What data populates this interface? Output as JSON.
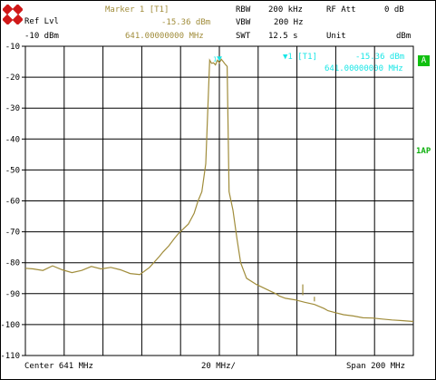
{
  "header": {
    "ref_lvl_label": "Ref Lvl",
    "ref_lvl_value": "-10 dBm",
    "marker_title": "Marker 1 [T1]",
    "marker_level": "-15.36 dBm",
    "marker_freq": "641.00000000 MHz",
    "rbw_label": "RBW",
    "rbw_value": "200 kHz",
    "vbw_label": "VBW",
    "vbw_value": "200 Hz",
    "swt_label": "SWT",
    "swt_value": "12.5 s",
    "rfatt_label": "RF Att",
    "rfatt_value": "0 dB",
    "unit_label": "Unit",
    "unit_value": "dBm"
  },
  "marker_box": {
    "title": "▼1 [T1]",
    "level": "-15.36 dBm",
    "freq": "641.00000000 MHz"
  },
  "side": {
    "trace_badge": "A",
    "ap_label": "1AP"
  },
  "footer": {
    "center": "Center 641 MHz",
    "div": "20 MHz/",
    "span": "Span 200 MHz"
  },
  "colors": {
    "trace": "#a08c3a",
    "marker": "#19e6e6",
    "grid": "#000000",
    "badge": "#10c010"
  },
  "chart_data": {
    "type": "line",
    "title": "",
    "xlabel": "",
    "ylabel": "",
    "x_unit": "MHz",
    "y_unit": "dBm",
    "xlim": [
      541,
      741
    ],
    "ylim": [
      -110,
      -10
    ],
    "y_ticks": [
      -10,
      -20,
      -30,
      -40,
      -50,
      -60,
      -70,
      -80,
      -90,
      -100,
      -110
    ],
    "grid": true,
    "series": [
      {
        "name": "",
        "x": [
          541,
          545,
          550,
          555,
          560,
          565,
          570,
          575,
          580,
          585,
          590,
          595,
          600,
          605,
          610,
          612,
          615,
          618,
          620,
          625,
          628,
          630,
          632,
          634,
          636,
          637,
          638,
          639,
          640,
          641,
          642,
          643,
          644,
          645,
          646,
          648,
          650,
          652,
          655,
          660,
          665,
          670,
          672,
          675,
          680,
          685,
          690,
          695,
          697,
          700,
          705,
          710,
          715,
          720,
          725,
          730,
          735,
          741
        ],
        "y": [
          -81.8,
          -82.0,
          -82.5,
          -81.0,
          -82.3,
          -83.2,
          -82.5,
          -81.2,
          -82.0,
          -81.5,
          -82.3,
          -83.5,
          -83.8,
          -81.5,
          -78.0,
          -76.5,
          -74.5,
          -72.0,
          -70.5,
          -67.5,
          -64.0,
          -60.0,
          -57.0,
          -48.0,
          -14.5,
          -15.5,
          -15.36,
          -16.0,
          -14.5,
          -15.36,
          -14.2,
          -15.0,
          -15.8,
          -16.5,
          -57.0,
          -63.0,
          -72.0,
          -80.0,
          -85.0,
          -87.0,
          -88.5,
          -90.0,
          -90.8,
          -91.5,
          -92.0,
          -92.8,
          -93.5,
          -94.8,
          -95.5,
          -96.0,
          -96.8,
          -97.2,
          -97.8,
          -97.9,
          -98.2,
          -98.5,
          -98.7,
          -99.0
        ]
      }
    ],
    "spurs": [
      {
        "x": 684,
        "y": -87
      },
      {
        "x": 690,
        "y": -91
      }
    ],
    "marker": {
      "x": 641,
      "y": -15.36
    }
  }
}
